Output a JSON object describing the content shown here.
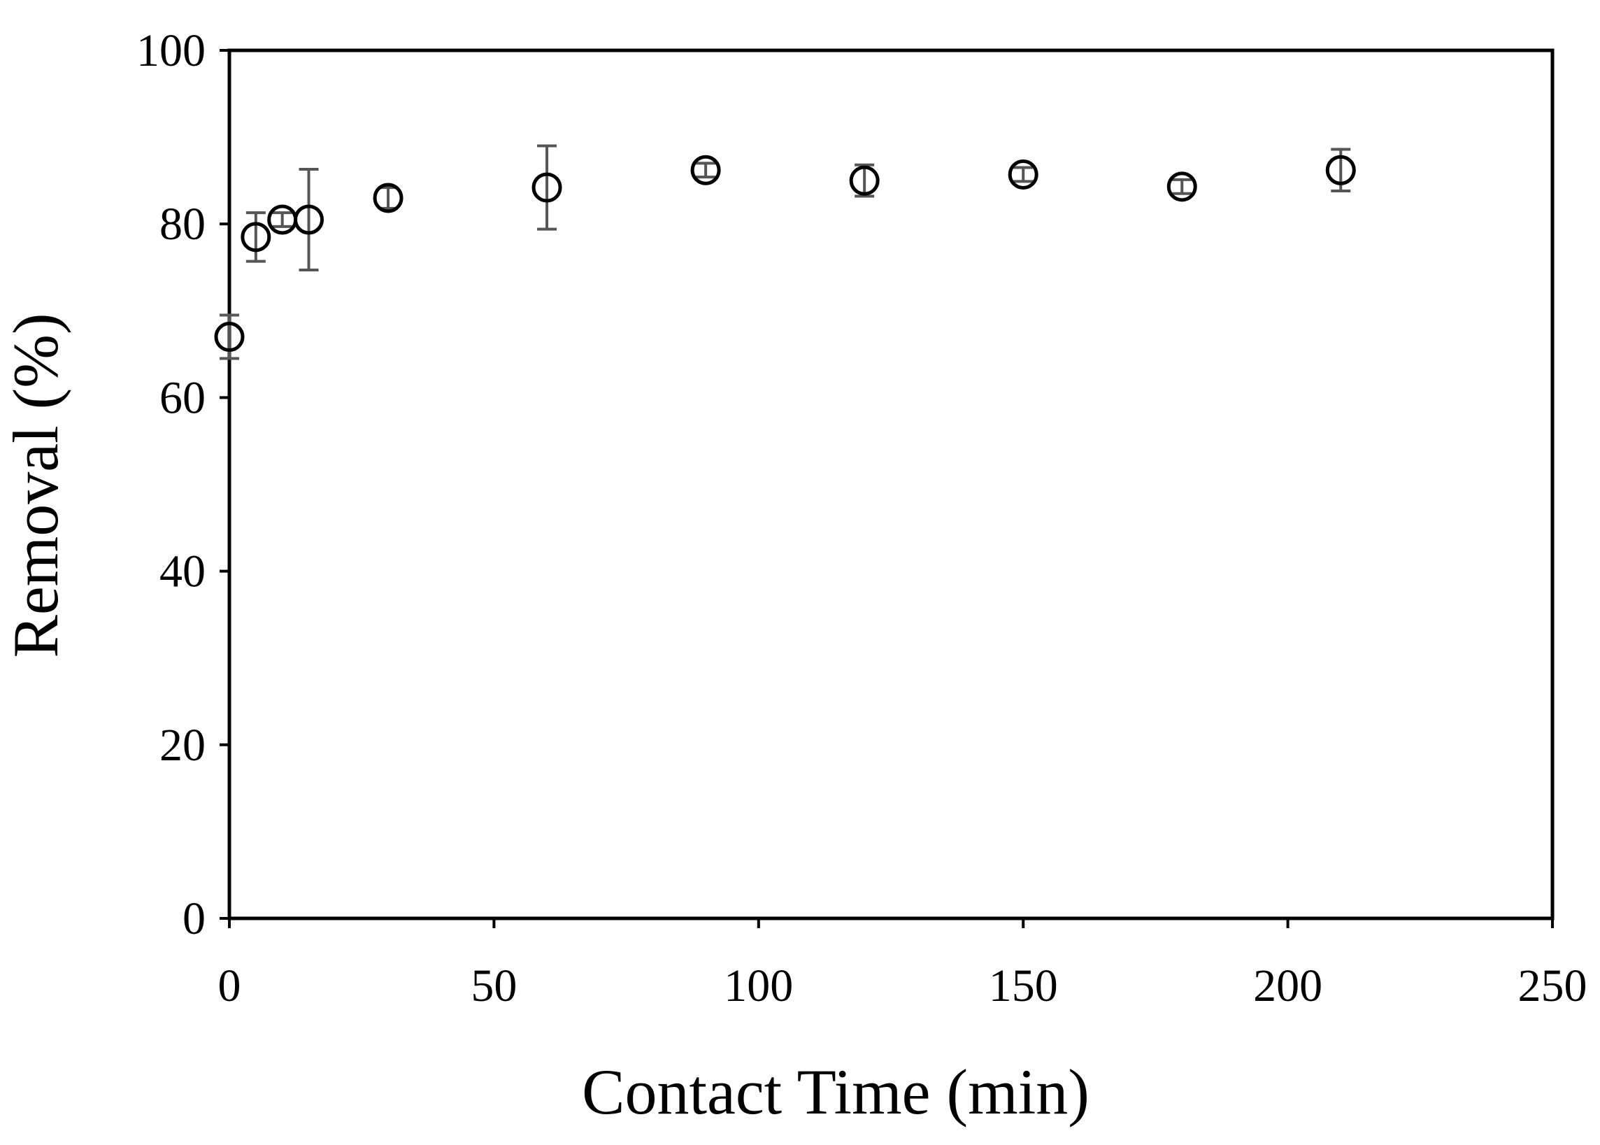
{
  "chart_data": {
    "type": "scatter",
    "title": "",
    "xlabel": "Contact Time (min)",
    "ylabel": "Removal (%)",
    "xlim": [
      0,
      250
    ],
    "ylim": [
      0,
      100
    ],
    "xticks": [
      "0",
      "50",
      "100",
      "150",
      "200",
      "250"
    ],
    "yticks": [
      "0",
      "20",
      "40",
      "60",
      "80",
      "100"
    ],
    "grid": false,
    "legend": "none",
    "marker": "open-circle",
    "colors": {
      "marker": "#000000",
      "error_bar": "#555555",
      "axis": "#000000"
    },
    "series": [
      {
        "x": [
          0,
          5,
          10,
          15,
          30,
          60,
          90,
          120,
          150,
          180,
          210
        ],
        "y": [
          67,
          78.5,
          80.5,
          80.5,
          83,
          84.2,
          86.2,
          85,
          85.7,
          84.3,
          86.2
        ],
        "error": [
          2.5,
          2.8,
          0.8,
          5.8,
          1.2,
          4.8,
          0.8,
          1.8,
          0.8,
          0.8,
          2.4
        ]
      }
    ]
  }
}
